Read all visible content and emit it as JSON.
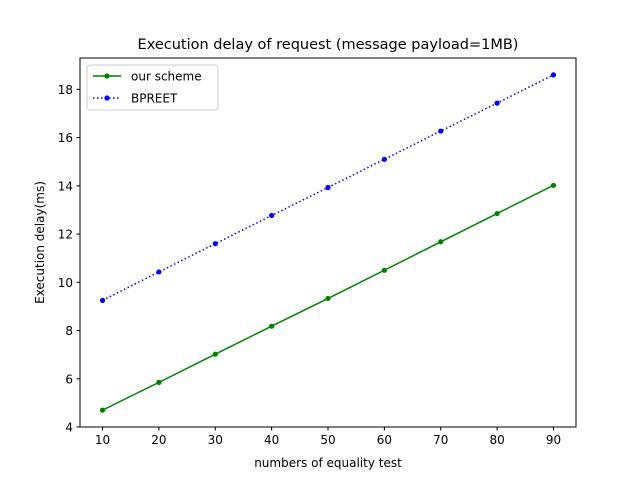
{
  "chart_data": {
    "type": "line",
    "title": "Execution delay of request (message payload=1MB)",
    "xlabel": "numbers of equality test",
    "ylabel": "Execution delay(ms)",
    "x": [
      10,
      20,
      30,
      40,
      50,
      60,
      70,
      80,
      90
    ],
    "xlim": [
      6.0,
      94.0
    ],
    "ylim": [
      4.0,
      19.3
    ],
    "xticks": [
      10,
      20,
      30,
      40,
      50,
      60,
      70,
      80,
      90
    ],
    "yticks": [
      4,
      6,
      8,
      10,
      12,
      14,
      16,
      18
    ],
    "legend_position": "top-left",
    "grid": false,
    "series": [
      {
        "name": "our scheme",
        "color": "#008000",
        "line_style": "solid",
        "marker": "dot",
        "values": [
          4.7,
          5.85,
          7.02,
          8.18,
          9.33,
          10.5,
          11.68,
          12.85,
          14.02
        ]
      },
      {
        "name": "BPREET",
        "color": "#0000ff",
        "line_style": "dotted",
        "marker": "dot",
        "values": [
          9.25,
          10.43,
          11.6,
          12.77,
          13.93,
          15.1,
          16.27,
          17.43,
          18.6
        ]
      }
    ]
  }
}
